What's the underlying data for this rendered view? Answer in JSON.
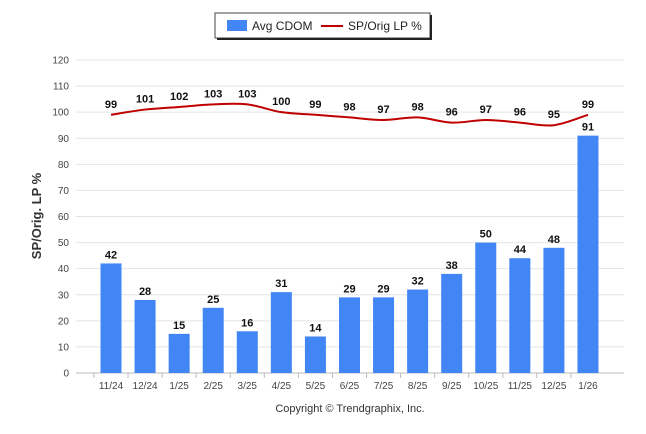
{
  "chart_data": {
    "type": "bar",
    "categories": [
      "11/24",
      "12/24",
      "1/25",
      "2/25",
      "3/25",
      "4/25",
      "5/25",
      "6/25",
      "7/25",
      "8/25",
      "9/25",
      "10/25",
      "11/25",
      "12/25",
      "1/26"
    ],
    "series": [
      {
        "name": "Avg CDOM",
        "type": "bar",
        "color": "#4285f4",
        "values": [
          42,
          28,
          15,
          25,
          16,
          31,
          14,
          29,
          29,
          32,
          38,
          50,
          44,
          48,
          91
        ]
      },
      {
        "name": "SP/Orig LP %",
        "type": "line",
        "color": "#c00000",
        "values": [
          99,
          101,
          102,
          103,
          103,
          100,
          99,
          98,
          97,
          98,
          96,
          97,
          96,
          95,
          99
        ]
      }
    ],
    "title": "",
    "xlabel": "",
    "ylabel": "SP/Orig. LP %",
    "ylim": [
      0,
      120
    ],
    "yticks": [
      0,
      10,
      20,
      30,
      40,
      50,
      60,
      70,
      80,
      90,
      100,
      110,
      120
    ],
    "grid": true,
    "legend": "top-center"
  },
  "footer": {
    "copyright": "Copyright © Trendgraphix, Inc."
  }
}
